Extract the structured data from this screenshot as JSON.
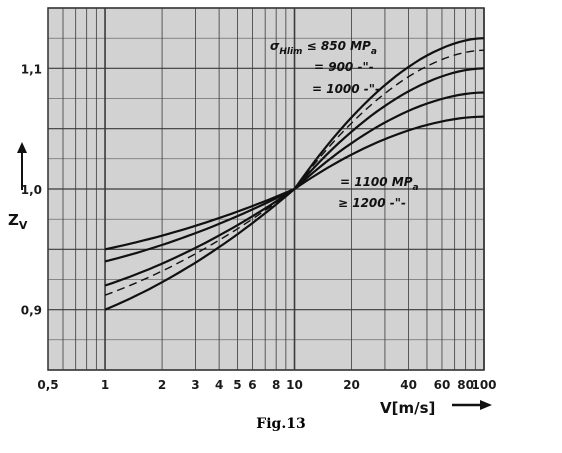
{
  "caption": "Fig.13",
  "chart_data": {
    "type": "line",
    "x_scale": "log",
    "xlim": [
      0.5,
      100
    ],
    "ylim": [
      0.85,
      1.15
    ],
    "xticks": [
      0.5,
      1,
      2,
      3,
      4,
      5,
      6,
      8,
      10,
      20,
      40,
      60,
      80,
      100
    ],
    "xtick_labels": [
      "0,5",
      "1",
      "2",
      "3",
      "4",
      "5",
      "6",
      "8",
      "10",
      "20",
      "40",
      "60",
      "80",
      "100"
    ],
    "yticks": [
      0.9,
      1.0,
      1.1
    ],
    "ytick_labels": [
      "0,9",
      "1,0",
      "1,1"
    ],
    "xlabel": "V[m/s]",
    "ylabel": "Z",
    "ylabel_sub": "V",
    "grid": true,
    "series": [
      {
        "name": "σHlim ≤ 850 MPa",
        "style": "solid",
        "x": [
          1,
          10,
          100
        ],
        "y": [
          0.9,
          1.0,
          1.125
        ]
      },
      {
        "name": "= 900",
        "style": "dashed",
        "x": [
          1,
          10,
          100
        ],
        "y": [
          0.912,
          1.0,
          1.115
        ]
      },
      {
        "name": "= 1000",
        "style": "solid",
        "x": [
          1,
          10,
          100
        ],
        "y": [
          0.92,
          1.0,
          1.1
        ]
      },
      {
        "name": "= 1100 MPa",
        "style": "solid",
        "x": [
          1,
          10,
          100
        ],
        "y": [
          0.94,
          1.0,
          1.08
        ]
      },
      {
        "name": "≥ 1200",
        "style": "solid",
        "x": [
          1,
          10,
          100
        ],
        "y": [
          0.95,
          1.0,
          1.06
        ]
      }
    ],
    "labels": {
      "l850_pre": "σ",
      "l850_sub": "Hlim",
      "l850_post": " ≤ 850  MP",
      "l850_unit": "a",
      "l900": "= 900  -\"-",
      "l1000": "= 1000  -\"-",
      "l1100": "= 1100 MP",
      "l1100_unit": "a",
      "l1200": "≥ 1200 -\"-"
    }
  }
}
